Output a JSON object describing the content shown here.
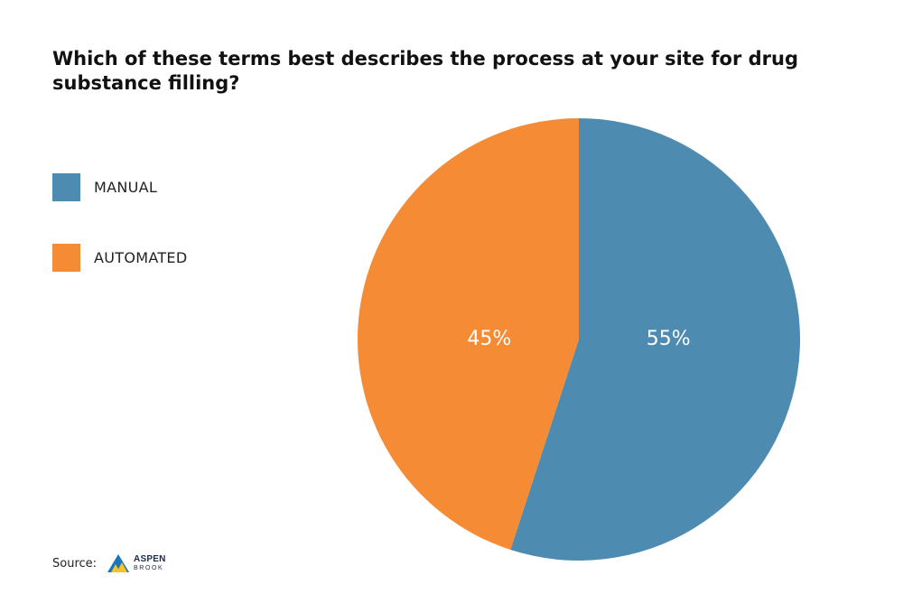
{
  "chart_data": {
    "type": "pie",
    "title": "Which of these terms best describes the process at your site for drug substance filling?",
    "categories": [
      "MANUAL",
      "AUTOMATED"
    ],
    "values": [
      55,
      45
    ],
    "labels": [
      "55%",
      "45%"
    ],
    "colors": [
      "#4e8bb1",
      "#f58c35"
    ],
    "legend_position": "left",
    "start_angle": "top, clockwise"
  },
  "footer": {
    "source_label": "Source:",
    "logo_text_line1": "ASPEN",
    "logo_text_line2": "BROOK",
    "logo_icon": "aspen-brook-logo-icon",
    "logo_colors": [
      "#1b75bb",
      "#f7c325"
    ]
  }
}
